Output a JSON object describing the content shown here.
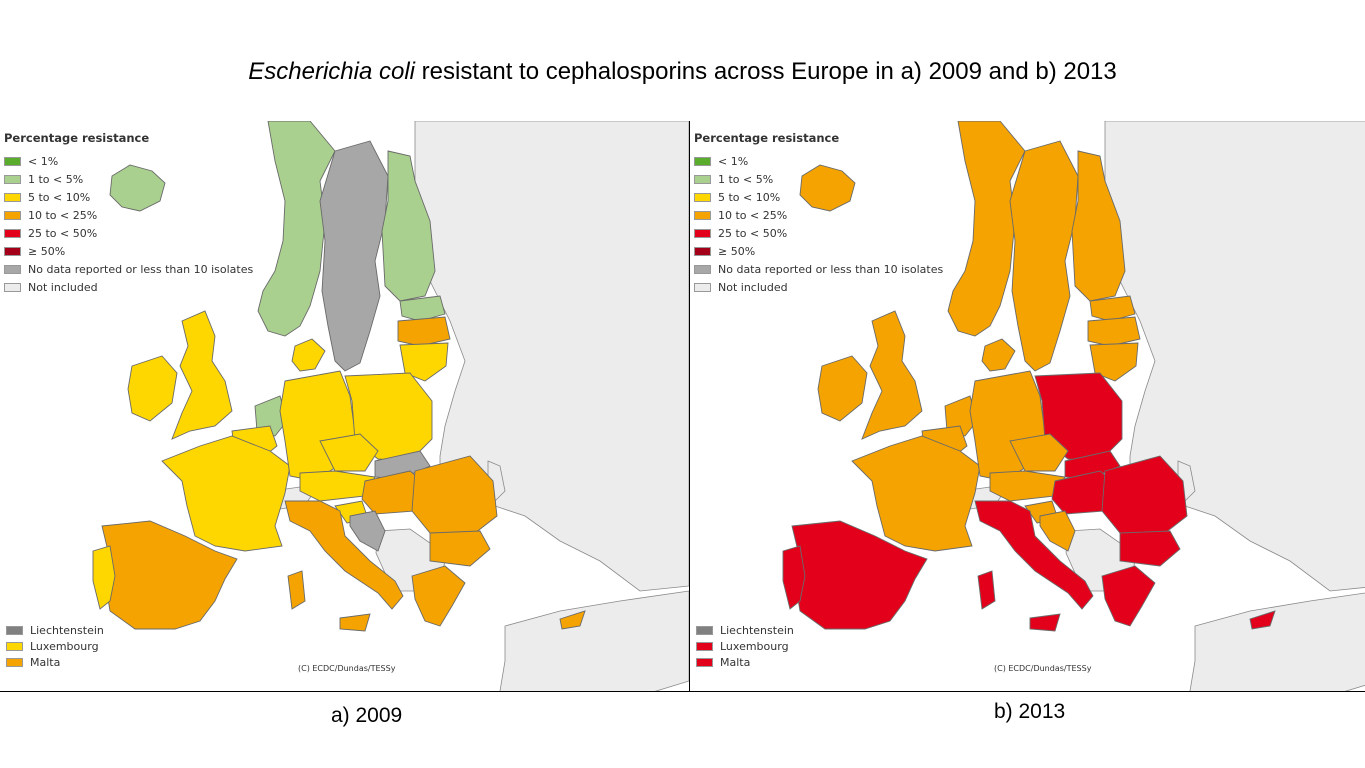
{
  "title": {
    "italic": "Escherichia coli",
    "rest": " resistant to cephalosporins across Europe in a) 2009 and b) 2013"
  },
  "legend": {
    "title": "Percentage resistance",
    "items": [
      {
        "label": "< 1%",
        "color": "#5aac2c"
      },
      {
        "label": "1 to < 5%",
        "color": "#a9d08e"
      },
      {
        "label": "5 to < 10%",
        "color": "#ffd700"
      },
      {
        "label": "10 to < 25%",
        "color": "#f4a300"
      },
      {
        "label": "25 to < 50%",
        "color": "#e3001b"
      },
      {
        "label": "≥ 50%",
        "color": "#a5001a"
      },
      {
        "label": "No data reported or less than 10 isolates",
        "color": "#a7a7a7"
      },
      {
        "label": "Not included",
        "color": "#ececec"
      }
    ]
  },
  "panels": [
    {
      "caption": "a) 2009",
      "credit": "(C) ECDC/Dundas/TESSy",
      "small_countries": [
        {
          "label": "Liechtenstein",
          "color": "#808080"
        },
        {
          "label": "Luxembourg",
          "color": "#ffd700"
        },
        {
          "label": "Malta",
          "color": "#f4a300"
        }
      ],
      "countries": {
        "iceland": "1 to < 5%",
        "norway": "1 to < 5%",
        "sweden": "No data reported or less than 10 isolates",
        "finland": "1 to < 5%",
        "estonia": "1 to < 5%",
        "latvia": "10 to < 25%",
        "lithuania": "5 to < 10%",
        "ireland": "5 to < 10%",
        "uk": "5 to < 10%",
        "denmark": "5 to < 10%",
        "netherlands": "1 to < 5%",
        "belgium": "5 to < 10%",
        "germany": "5 to < 10%",
        "poland": "5 to < 10%",
        "czechia": "5 to < 10%",
        "slovakia": "No data reported or less than 10 isolates",
        "austria": "5 to < 10%",
        "hungary": "10 to < 25%",
        "slovenia": "5 to < 10%",
        "croatia": "No data reported or less than 10 isolates",
        "romania": "10 to < 25%",
        "bulgaria": "10 to < 25%",
        "greece": "10 to < 25%",
        "cyprus": "10 to < 25%",
        "italy": "10 to < 25%",
        "france": "5 to < 10%",
        "spain": "10 to < 25%",
        "portugal": "5 to < 10%"
      }
    },
    {
      "caption": "b) 2013",
      "credit": "(C) ECDC/Dundas/TESSy",
      "small_countries": [
        {
          "label": "Liechtenstein",
          "color": "#808080"
        },
        {
          "label": "Luxembourg",
          "color": "#e3001b"
        },
        {
          "label": "Malta",
          "color": "#e3001b"
        }
      ],
      "countries": {
        "iceland": "10 to < 25%",
        "norway": "10 to < 25%",
        "sweden": "10 to < 25%",
        "finland": "10 to < 25%",
        "estonia": "10 to < 25%",
        "latvia": "10 to < 25%",
        "lithuania": "10 to < 25%",
        "ireland": "10 to < 25%",
        "uk": "10 to < 25%",
        "denmark": "10 to < 25%",
        "netherlands": "10 to < 25%",
        "belgium": "10 to < 25%",
        "germany": "10 to < 25%",
        "poland": "25 to < 50%",
        "czechia": "10 to < 25%",
        "slovakia": "25 to < 50%",
        "austria": "10 to < 25%",
        "hungary": "25 to < 50%",
        "slovenia": "10 to < 25%",
        "croatia": "10 to < 25%",
        "romania": "25 to < 50%",
        "bulgaria": "25 to < 50%",
        "greece": "25 to < 50%",
        "cyprus": "25 to < 50%",
        "italy": "25 to < 50%",
        "france": "10 to < 25%",
        "spain": "25 to < 50%",
        "portugal": "25 to < 50%"
      }
    }
  ]
}
